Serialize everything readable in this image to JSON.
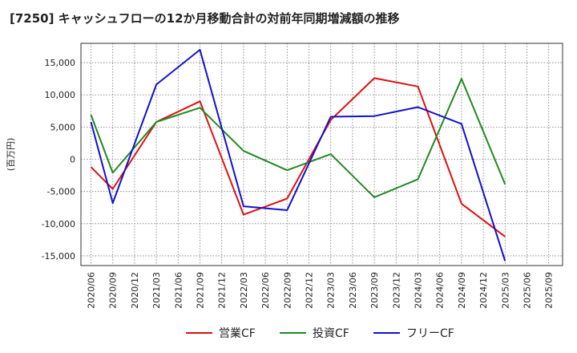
{
  "chart_data": {
    "type": "line",
    "title": "[7250]  キャッシュフローの12か月移動合計の対前年同期増減額の推移",
    "ylabel": "(百万円)",
    "xlabel": "",
    "ylim": [
      -16500,
      18000
    ],
    "yticks": [
      -15000,
      -10000,
      -5000,
      0,
      5000,
      10000,
      15000
    ],
    "ytick_labels": [
      "-15,000",
      "-10,000",
      "-5,000",
      "0",
      "5,000",
      "10,000",
      "15,000"
    ],
    "categories": [
      "2020/06",
      "2020/09",
      "2020/12",
      "2021/03",
      "2021/06",
      "2021/09",
      "2021/12",
      "2022/03",
      "2022/06",
      "2022/09",
      "2022/12",
      "2023/03",
      "2023/06",
      "2023/09",
      "2023/12",
      "2024/03",
      "2024/06",
      "2024/09",
      "2024/12",
      "2025/03",
      "2025/06",
      "2025/09"
    ],
    "grid": true,
    "legend_position": "bottom",
    "series": [
      {
        "name": "営業CF",
        "color": "#dd1111",
        "values": [
          -1200,
          -4600,
          null,
          5800,
          null,
          9000,
          null,
          -8600,
          null,
          -6100,
          null,
          6100,
          null,
          12600,
          null,
          11300,
          null,
          -6900,
          null,
          -12000,
          null,
          null
        ]
      },
      {
        "name": "投資CF",
        "color": "#228822",
        "values": [
          6900,
          -2100,
          null,
          5800,
          null,
          8000,
          null,
          1300,
          null,
          -1700,
          null,
          800,
          null,
          -5900,
          null,
          -3100,
          null,
          12500,
          null,
          -3900,
          null,
          null
        ]
      },
      {
        "name": "フリーCF",
        "color": "#1111cc",
        "values": [
          5800,
          -6800,
          null,
          11600,
          null,
          17000,
          null,
          -7300,
          null,
          -7900,
          null,
          6600,
          null,
          6700,
          null,
          8100,
          null,
          5500,
          null,
          -15800,
          null,
          null
        ]
      }
    ]
  }
}
